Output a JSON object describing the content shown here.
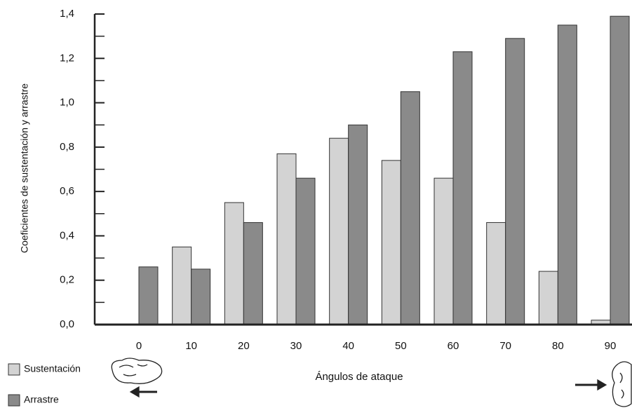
{
  "chart_data": {
    "type": "bar",
    "x_label": "Ángulos de ataque",
    "y_label": "Coeficientes de sustentación y arrastre",
    "categories": [
      "0",
      "10",
      "20",
      "30",
      "40",
      "50",
      "60",
      "70",
      "80",
      "90"
    ],
    "series": [
      {
        "name": "Sustentación",
        "color": "#d3d3d3",
        "values": [
          0,
          0.35,
          0.55,
          0.77,
          0.84,
          0.74,
          0.66,
          0.46,
          0.24,
          0.02
        ]
      },
      {
        "name": "Arrastre",
        "color": "#8a8a8a",
        "values": [
          0.26,
          0.25,
          0.46,
          0.66,
          0.9,
          1.05,
          1.23,
          1.29,
          1.35,
          1.39
        ]
      }
    ],
    "ylim": [
      0,
      1.4
    ],
    "yticks": [
      {
        "value": 0,
        "label": "0,0"
      },
      {
        "value": 0.2,
        "label": "0,2"
      },
      {
        "value": 0.4,
        "label": "0,4"
      },
      {
        "value": 0.6,
        "label": "0,6"
      },
      {
        "value": 0.8,
        "label": "0,8"
      },
      {
        "value": 1.0,
        "label": "1,0"
      },
      {
        "value": 1.2,
        "label": "1,2"
      },
      {
        "value": 1.4,
        "label": "1,4"
      }
    ],
    "yticks_minor": [
      0.1,
      0.3,
      0.5,
      0.7,
      0.9,
      1.1,
      1.3
    ],
    "legend": "bottom-left"
  }
}
